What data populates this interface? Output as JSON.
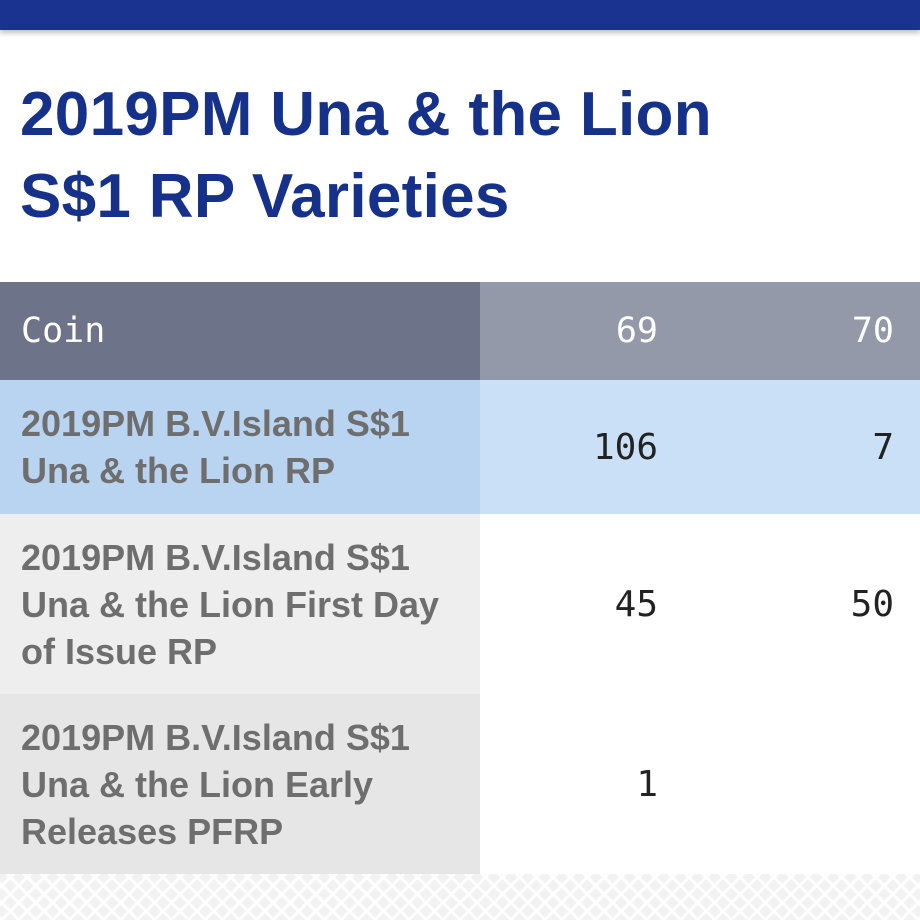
{
  "page": {
    "title_line1": "2019PM Una & the Lion",
    "title_line2": "S$1 RP Varieties"
  },
  "colors": {
    "brand_blue": "#15318a",
    "top_bar": "#1a3391",
    "header_coin_bg": "#6d7388",
    "header_grade_bg": "#9499a9",
    "highlight_row": "#c9e0f6"
  },
  "table": {
    "headers": {
      "coin": "Coin",
      "grade_69": "69",
      "grade_70": "70"
    },
    "rows": [
      {
        "coin": "2019PM B.V.Island S$1 Una & the Lion RP",
        "grade_69": "106",
        "grade_70": "7",
        "highlighted": true
      },
      {
        "coin": "2019PM B.V.Island S$1 Una & the Lion First Day of Issue RP",
        "grade_69": "45",
        "grade_70": "50",
        "highlighted": false
      },
      {
        "coin": "2019PM B.V.Island S$1 Una & the Lion Early Releases PFRP",
        "grade_69": "1",
        "grade_70": "",
        "highlighted": false
      }
    ]
  }
}
